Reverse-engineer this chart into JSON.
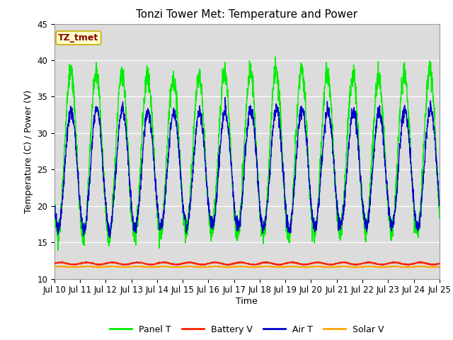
{
  "title": "Tonzi Tower Met: Temperature and Power",
  "xlabel": "Time",
  "ylabel": "Temperature (C) / Power (V)",
  "xlim": [
    0,
    15
  ],
  "ylim": [
    10,
    45
  ],
  "yticks": [
    10,
    15,
    20,
    25,
    30,
    35,
    40,
    45
  ],
  "xtick_labels": [
    "Jul 10",
    "Jul 11",
    "Jul 12",
    "Jul 13",
    "Jul 14",
    "Jul 15",
    "Jul 16",
    "Jul 17",
    "Jul 18",
    "Jul 19",
    "Jul 20",
    "Jul 21",
    "Jul 22",
    "Jul 23",
    "Jul 24",
    "Jul 25"
  ],
  "xtick_positions": [
    0,
    1,
    2,
    3,
    4,
    5,
    6,
    7,
    8,
    9,
    10,
    11,
    12,
    13,
    14,
    15
  ],
  "panel_color": "#00EE00",
  "battery_color": "#FF2200",
  "air_color": "#0000CC",
  "solar_color": "#FFA500",
  "bg_color": "#DCDCDC",
  "label_box_facecolor": "#FFFFCC",
  "label_box_edgecolor": "#CCAA00",
  "label_box_text_color": "#880000",
  "label_box_text": "TZ_tmet",
  "legend_labels": [
    "Panel T",
    "Battery V",
    "Air T",
    "Solar V"
  ],
  "title_fontsize": 11,
  "axis_fontsize": 9,
  "tick_fontsize": 8.5
}
